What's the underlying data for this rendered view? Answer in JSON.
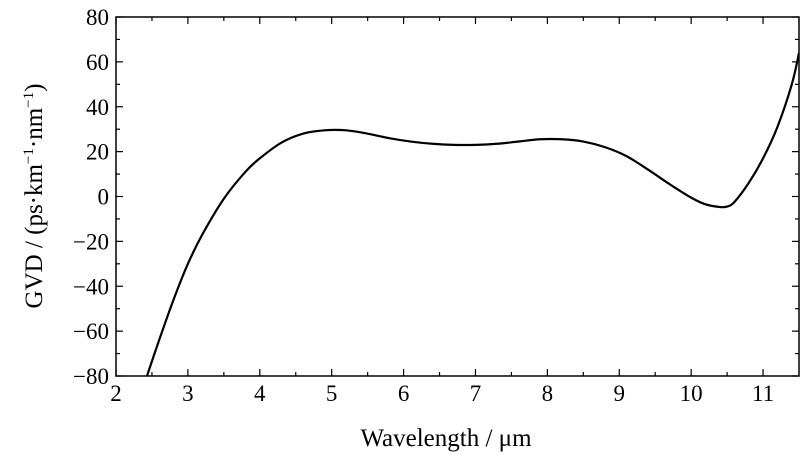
{
  "chart_data": {
    "type": "line",
    "title": "",
    "xlabel": "Wavelength / μm",
    "ylabel": {
      "prefix": "GVD / (ps·km",
      "sup1": "−1",
      "mid": "·nm",
      "sup2": "−1",
      "suffix": ")"
    },
    "xlim": [
      2,
      11.5
    ],
    "ylim": [
      -80,
      80
    ],
    "x_ticks": [
      2,
      3,
      4,
      5,
      6,
      7,
      8,
      9,
      10,
      11
    ],
    "x_tick_labels": [
      "2",
      "3",
      "4",
      "5",
      "6",
      "7",
      "8",
      "9",
      "10",
      "11"
    ],
    "y_ticks": [
      -80,
      -60,
      -40,
      -20,
      0,
      20,
      40,
      60,
      80
    ],
    "y_tick_labels": [
      "−80",
      "−60",
      "−40",
      "−20",
      "0",
      "20",
      "40",
      "60",
      "80"
    ],
    "grid": false,
    "legend": "none",
    "line_color": "#000000",
    "series": [
      {
        "x": [
          2.42,
          2.6,
          2.8,
          3.0,
          3.2,
          3.5,
          3.8,
          4.0,
          4.3,
          4.6,
          4.9,
          5.2,
          5.5,
          5.8,
          6.1,
          6.4,
          6.7,
          7.0,
          7.3,
          7.6,
          7.9,
          8.2,
          8.5,
          8.8,
          9.1,
          9.4,
          9.7,
          10.0,
          10.2,
          10.4,
          10.5,
          10.6,
          10.8,
          11.0,
          11.2,
          11.4,
          11.5
        ],
        "y": [
          -81,
          -64,
          -46,
          -30,
          -17,
          -1,
          11,
          17,
          24,
          28,
          29.5,
          29.5,
          28,
          26,
          24.5,
          23.5,
          23,
          23,
          23.5,
          24.5,
          25.5,
          25.5,
          24.5,
          22,
          18,
          12,
          5.5,
          -0.5,
          -3.5,
          -4.7,
          -4.5,
          -2.5,
          6,
          17,
          31,
          50,
          64
        ]
      }
    ]
  }
}
